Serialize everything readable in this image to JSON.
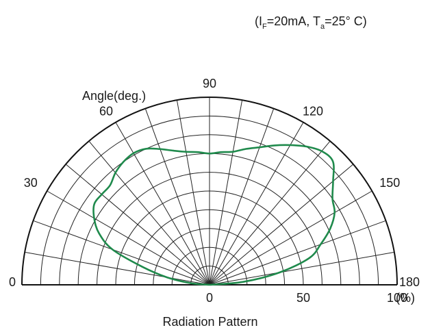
{
  "condition": {
    "open": "(I",
    "if_sub": "F",
    "mid": "=20mA, T",
    "ta_sub": "a",
    "close": "=25° C)"
  },
  "chart_data": {
    "type": "polar-line",
    "title": "Radiation Pattern",
    "angle_axis_label": "Angle(deg.)",
    "radial_unit": "(%)",
    "radial_range": [
      0,
      100
    ],
    "radial_ticks": [
      0,
      50,
      100
    ],
    "radial_tick_labels": [
      "0",
      "50",
      "100"
    ],
    "angle_range": [
      0,
      180
    ],
    "angle_ticks": [
      0,
      30,
      60,
      90,
      120,
      150,
      180
    ],
    "angle_tick_labels": [
      "0",
      "30",
      "60",
      "90",
      "120",
      "150",
      "180"
    ],
    "grid": true,
    "series": [
      {
        "color": "#1f8a4c",
        "angles": [
          0,
          5,
          10,
          15,
          20,
          25,
          30,
          35,
          40,
          45,
          50,
          55,
          60,
          65,
          70,
          75,
          80,
          85,
          90,
          95,
          100,
          105,
          110,
          115,
          120,
          125,
          130,
          135,
          140,
          145,
          150,
          155,
          160,
          165,
          170,
          175,
          180
        ],
        "values": [
          0,
          10,
          23,
          37,
          55,
          65,
          71,
          75,
          75,
          75,
          78,
          80,
          81,
          80,
          77,
          74,
          72,
          71,
          70,
          71,
          72,
          75,
          78,
          82,
          86,
          90,
          93,
          93,
          86,
          80,
          77,
          71,
          63,
          55,
          38,
          18,
          0
        ]
      }
    ]
  }
}
